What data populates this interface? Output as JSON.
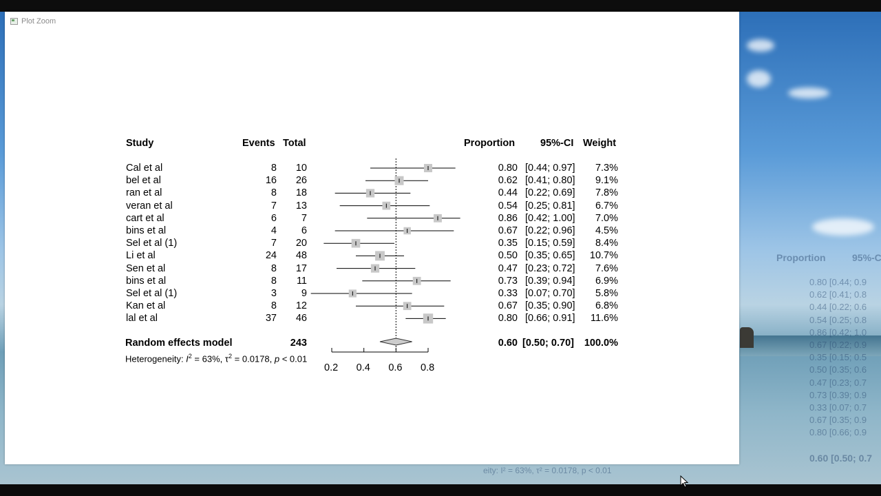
{
  "window": {
    "title": "Plot Zoom",
    "icon": "plot-window-icon"
  },
  "headers": {
    "study": "Study",
    "events": "Events",
    "total": "Total",
    "proportion": "Proportion",
    "ci": "95%-CI",
    "weight": "Weight"
  },
  "studies": [
    {
      "name": "Cal et al",
      "events": "8",
      "total": "10",
      "prop": "0.80",
      "ci": "[0.44; 0.97]",
      "weight": "7.3%",
      "p": 0.8,
      "lo": 0.44,
      "hi": 0.97,
      "w": 7.3
    },
    {
      "name": "bel et al",
      "events": "16",
      "total": "26",
      "prop": "0.62",
      "ci": "[0.41; 0.80]",
      "weight": "9.1%",
      "p": 0.62,
      "lo": 0.41,
      "hi": 0.8,
      "w": 9.1
    },
    {
      "name": "ran et al",
      "events": "8",
      "total": "18",
      "prop": "0.44",
      "ci": "[0.22; 0.69]",
      "weight": "7.8%",
      "p": 0.44,
      "lo": 0.22,
      "hi": 0.69,
      "w": 7.8
    },
    {
      "name": "veran et al",
      "events": "7",
      "total": "13",
      "prop": "0.54",
      "ci": "[0.25; 0.81]",
      "weight": "6.7%",
      "p": 0.54,
      "lo": 0.25,
      "hi": 0.81,
      "w": 6.7
    },
    {
      "name": "cart et al",
      "events": "6",
      "total": "7",
      "prop": "0.86",
      "ci": "[0.42; 1.00]",
      "weight": "7.0%",
      "p": 0.86,
      "lo": 0.42,
      "hi": 1.0,
      "w": 7.0
    },
    {
      "name": "bins et al",
      "events": "4",
      "total": "6",
      "prop": "0.67",
      "ci": "[0.22; 0.96]",
      "weight": "4.5%",
      "p": 0.67,
      "lo": 0.22,
      "hi": 0.96,
      "w": 4.5
    },
    {
      "name": "Sel et al (1)",
      "events": "7",
      "total": "20",
      "prop": "0.35",
      "ci": "[0.15; 0.59]",
      "weight": "8.4%",
      "p": 0.35,
      "lo": 0.15,
      "hi": 0.59,
      "w": 8.4
    },
    {
      "name": "Li et al",
      "events": "24",
      "total": "48",
      "prop": "0.50",
      "ci": "[0.35; 0.65]",
      "weight": "10.7%",
      "p": 0.5,
      "lo": 0.35,
      "hi": 0.65,
      "w": 10.7
    },
    {
      "name": "Sen et al",
      "events": "8",
      "total": "17",
      "prop": "0.47",
      "ci": "[0.23; 0.72]",
      "weight": "7.6%",
      "p": 0.47,
      "lo": 0.23,
      "hi": 0.72,
      "w": 7.6
    },
    {
      "name": "bins et al",
      "events": "8",
      "total": "11",
      "prop": "0.73",
      "ci": "[0.39; 0.94]",
      "weight": "6.9%",
      "p": 0.73,
      "lo": 0.39,
      "hi": 0.94,
      "w": 6.9
    },
    {
      "name": "Sel et al (1)",
      "events": "3",
      "total": "9",
      "prop": "0.33",
      "ci": "[0.07; 0.70]",
      "weight": "5.8%",
      "p": 0.33,
      "lo": 0.07,
      "hi": 0.7,
      "w": 5.8
    },
    {
      "name": "Kan et al",
      "events": "8",
      "total": "12",
      "prop": "0.67",
      "ci": "[0.35; 0.90]",
      "weight": "6.8%",
      "p": 0.67,
      "lo": 0.35,
      "hi": 0.9,
      "w": 6.8
    },
    {
      "name": "lal et al",
      "events": "37",
      "total": "46",
      "prop": "0.80",
      "ci": "[0.66; 0.91]",
      "weight": "11.6%",
      "p": 0.8,
      "lo": 0.66,
      "hi": 0.91,
      "w": 11.6
    }
  ],
  "summary": {
    "label": "Random effects model",
    "total": "243",
    "prop": "0.60",
    "ci": "[0.50; 0.70]",
    "weight": "100.0%",
    "p": 0.6,
    "lo": 0.5,
    "hi": 0.7
  },
  "heterogeneity": {
    "prefix": "Heterogeneity: ",
    "i2_sym": "I",
    "i2_val": " = 63%, ",
    "tau_sym": "τ",
    "tau_val": " = 0.0178, ",
    "p_sym": "p",
    "p_val": " < 0.01"
  },
  "axis": {
    "ticks": [
      0.2,
      0.4,
      0.6,
      0.8
    ],
    "tick_labels": [
      "0.2",
      "0.4",
      "0.6",
      "0.8"
    ],
    "ref_line": 0.6
  },
  "chart_data": {
    "type": "forest",
    "xlim": [
      0.2,
      0.8
    ],
    "reference_line": 0.6,
    "colors": {
      "square": "#c8c8c8",
      "line": "#000000",
      "diamond": "#cccccc"
    }
  },
  "background_ghost": {
    "proportion": "Proportion",
    "ci": "95%-C",
    "rows": [
      "0.80  [0.44; 0.9",
      "0.62  [0.41; 0.8",
      "0.44  [0.22; 0.6",
      "0.54  [0.25; 0.8",
      "0.86  [0.42; 1.0",
      "0.67  [0.22; 0.9",
      "0.35  [0.15; 0.5",
      "0.50  [0.35; 0.6",
      "0.47  [0.23; 0.7",
      "0.73  [0.39; 0.9",
      "0.33  [0.07; 0.7",
      "0.67  [0.35; 0.9",
      "0.80  [0.66; 0.9"
    ],
    "summary": "0.60  [0.50; 0.7",
    "het": "eity: I² = 63%, τ² = 0.0178, p < 0.01"
  }
}
